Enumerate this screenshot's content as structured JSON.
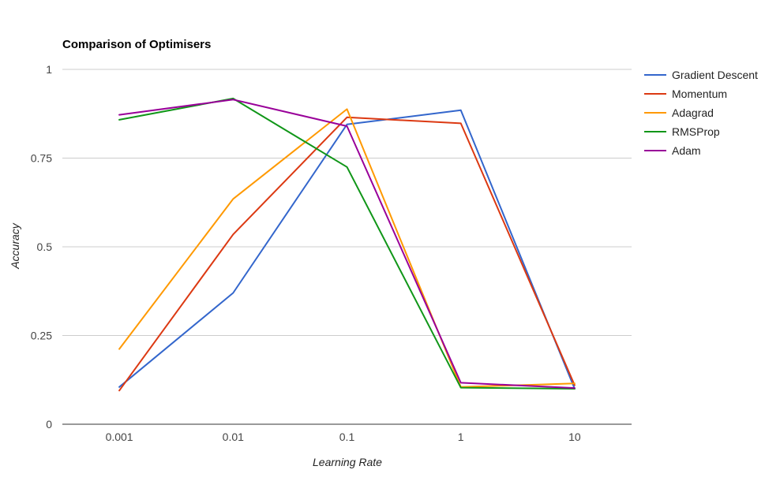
{
  "chart_data": {
    "type": "line",
    "title": "Comparison of Optimisers",
    "xlabel": "Learning Rate",
    "ylabel": "Accuracy",
    "categories": [
      "0.001",
      "0.01",
      "0.1",
      "1",
      "10"
    ],
    "ylim": [
      0,
      1
    ],
    "yticks": [
      0,
      0.25,
      0.5,
      0.75,
      1
    ],
    "ytick_labels": [
      "0",
      "0.25",
      "0.5",
      "0.75",
      "1"
    ],
    "grid": true,
    "legend_position": "right",
    "series": [
      {
        "name": "Gradient Descent",
        "color": "#3366cc",
        "values": [
          0.105,
          0.37,
          0.845,
          0.885,
          0.1
        ]
      },
      {
        "name": "Momentum",
        "color": "#dc3912",
        "values": [
          0.095,
          0.535,
          0.865,
          0.848,
          0.11
        ]
      },
      {
        "name": "Adagrad",
        "color": "#ff9900",
        "values": [
          0.212,
          0.635,
          0.888,
          0.105,
          0.115
        ]
      },
      {
        "name": "RMSProp",
        "color": "#109618",
        "values": [
          0.858,
          0.918,
          0.725,
          0.103,
          0.1
        ]
      },
      {
        "name": "Adam",
        "color": "#990099",
        "values": [
          0.872,
          0.915,
          0.84,
          0.117,
          0.102
        ]
      }
    ]
  }
}
